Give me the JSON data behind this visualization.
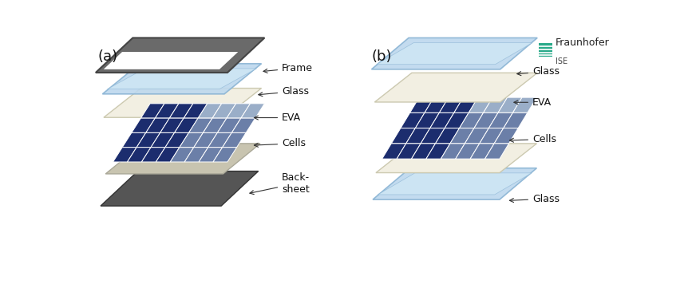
{
  "background_color": "#ffffff",
  "label_a": "(a)",
  "label_b": "(b)",
  "label_fontsize": 13,
  "fraunhofer_text": "Fraunhofer",
  "fraunhofer_sub": "ISE",
  "colors": {
    "glass": "#bdd8ee",
    "glass_edge": "#8ab4d4",
    "glass_inner": "#d0e8f5",
    "eva": "#f2efe2",
    "eva_edge": "#ccc9b0",
    "cells_dark": "#1c2d6e",
    "cells_mid": "#6b7fa8",
    "cells_light": "#9aaec8",
    "cells_grid": "#ffffff",
    "backsheet_light": "#c8c4b0",
    "backsheet_light_edge": "#aaa898",
    "backsheet_dark": "#555555",
    "backsheet_dark_edge": "#333333",
    "frame": "#6a6a6a",
    "frame_edge": "#444444",
    "arrow": "#333333"
  }
}
